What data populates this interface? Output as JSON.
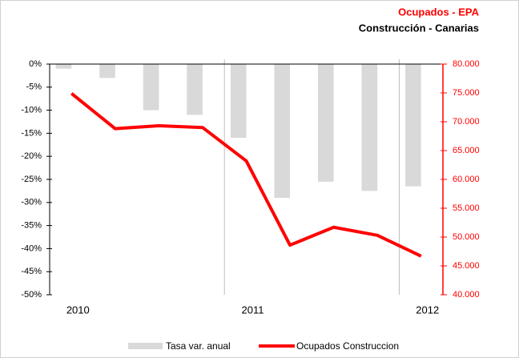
{
  "chart_data": {
    "type": "bar-line",
    "title": "Ocupados - EPA",
    "subtitle": "Construcción - Canarias",
    "categories": [
      "2010",
      null,
      null,
      null,
      "2011",
      null,
      null,
      null,
      "2012"
    ],
    "series": [
      {
        "name": "Tasa var. anual",
        "color": "#d9d9d9",
        "type": "bar",
        "axis": "y",
        "values": [
          -1,
          -3,
          -10,
          -11,
          -16,
          -29,
          -25.5,
          -27.5,
          -26.5
        ]
      },
      {
        "name": "Ocupados Construccion",
        "color": "#ff0000",
        "type": "line",
        "axis": "y2",
        "values": [
          74900,
          68800,
          69300,
          69000,
          63200,
          48600,
          51700,
          50300,
          46700
        ]
      }
    ],
    "ylim": [
      -50,
      0
    ],
    "yticks": [
      {
        "value": 0,
        "label": "0%"
      },
      {
        "value": -5,
        "label": "-5%"
      },
      {
        "value": -10,
        "label": "-10%"
      },
      {
        "value": -15,
        "label": "-15%"
      },
      {
        "value": -20,
        "label": "-20%"
      },
      {
        "value": -25,
        "label": "-25%"
      },
      {
        "value": -30,
        "label": "-30%"
      },
      {
        "value": -35,
        "label": "-35%"
      },
      {
        "value": -40,
        "label": "-40%"
      },
      {
        "value": -45,
        "label": "-45%"
      },
      {
        "value": -50,
        "label": "-50%"
      }
    ],
    "y2lim": [
      40000,
      80000
    ],
    "y2ticks": [
      {
        "value": 80000,
        "label": "80.000"
      },
      {
        "value": 75000,
        "label": "75.000"
      },
      {
        "value": 70000,
        "label": "70.000"
      },
      {
        "value": 65000,
        "label": "65.000"
      },
      {
        "value": 60000,
        "label": "60.000"
      },
      {
        "value": 55000,
        "label": "55.000"
      },
      {
        "value": 50000,
        "label": "50.000"
      },
      {
        "value": 45000,
        "label": "45.000"
      },
      {
        "value": 40000,
        "label": "40.000"
      }
    ],
    "y2color": "#ff0000",
    "legend": "bottom"
  }
}
